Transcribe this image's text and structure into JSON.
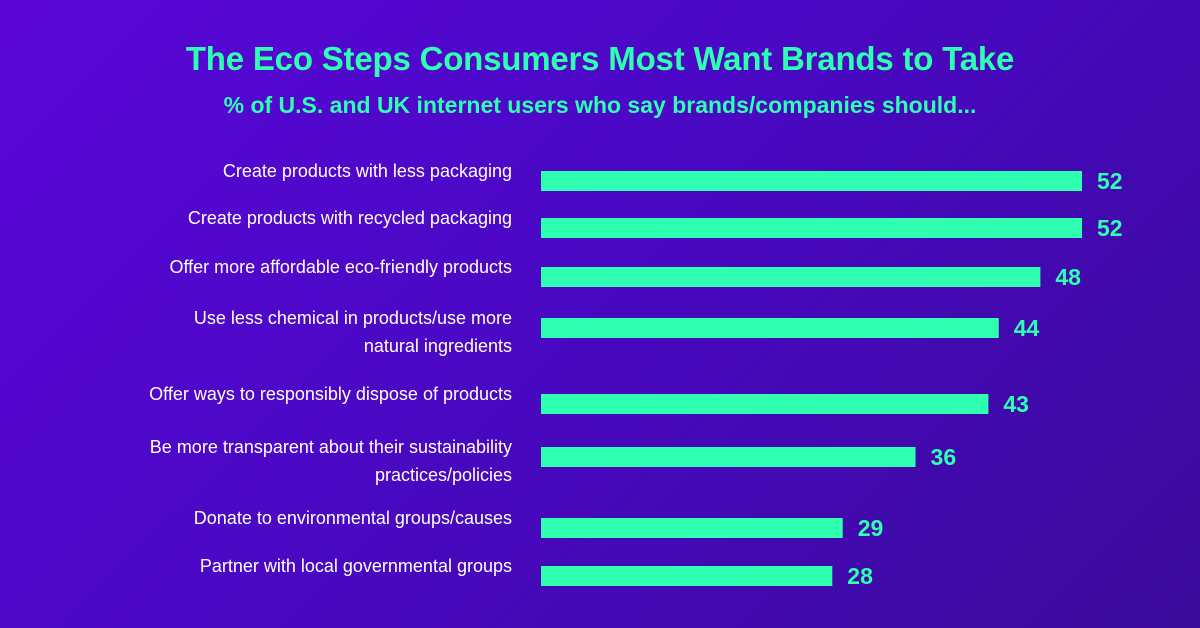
{
  "title": "The Eco Steps Consumers Most Want Brands to Take",
  "subtitle": "% of U.S. and UK internet users who say brands/companies should...",
  "colors": {
    "background_start": "#5a06d8",
    "background_end": "#3a0a9a",
    "accent": "#2effb0",
    "label_text": "#ffffff"
  },
  "chart_data": {
    "type": "bar",
    "orientation": "horizontal",
    "categories": [
      [
        "Create products with less packaging"
      ],
      [
        "Create products with recycled packaging"
      ],
      [
        "Offer more affordable eco-friendly products"
      ],
      [
        "Use less chemical in products/use more",
        "natural ingredients"
      ],
      [
        "Offer ways to responsibly dispose of products"
      ],
      [
        "Be more transparent about their sustainability",
        "practices/policies"
      ],
      [
        "Donate to environmental groups/causes"
      ],
      [
        "Partner with local governmental groups"
      ]
    ],
    "values": [
      52,
      52,
      48,
      44,
      43,
      36,
      29,
      28
    ],
    "value_labels": [
      "52",
      "52",
      "48",
      "44",
      "43",
      "36",
      "29",
      "28"
    ],
    "xlim": [
      0,
      52
    ],
    "grid": false,
    "legend": "none"
  }
}
